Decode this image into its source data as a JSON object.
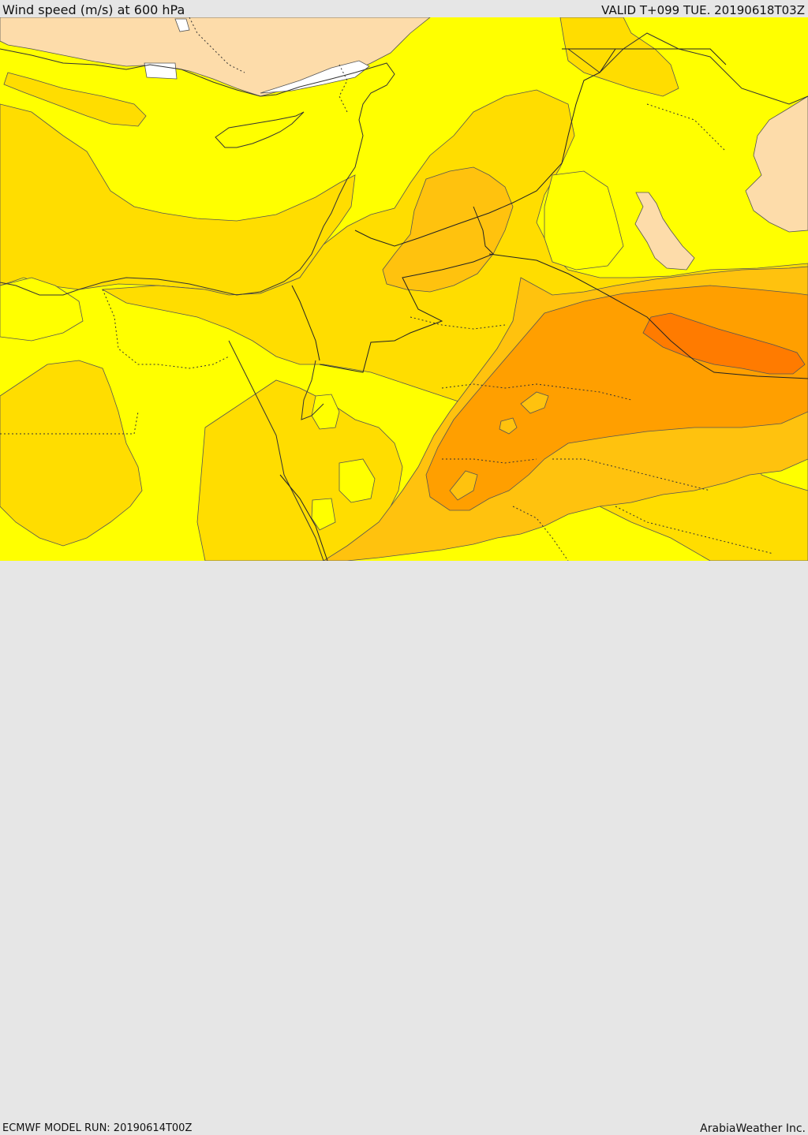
{
  "header": {
    "title": "Wind speed (m/s) at 600 hPa",
    "valid_label": "VALID T+099 TUE. 20190618T03Z"
  },
  "footer": {
    "model_run": "ECMWF MODEL RUN: 20190614T00Z",
    "credit": "ArabiaWeather Inc."
  },
  "colors": {
    "land_bright": "#ffff00",
    "band_1": "#ffdd00",
    "band_2": "#ffc20e",
    "band_3": "#ff9f00",
    "band_4": "#ff7b00",
    "low_wind": "#fddcaa",
    "no_data": "#ffffff"
  }
}
